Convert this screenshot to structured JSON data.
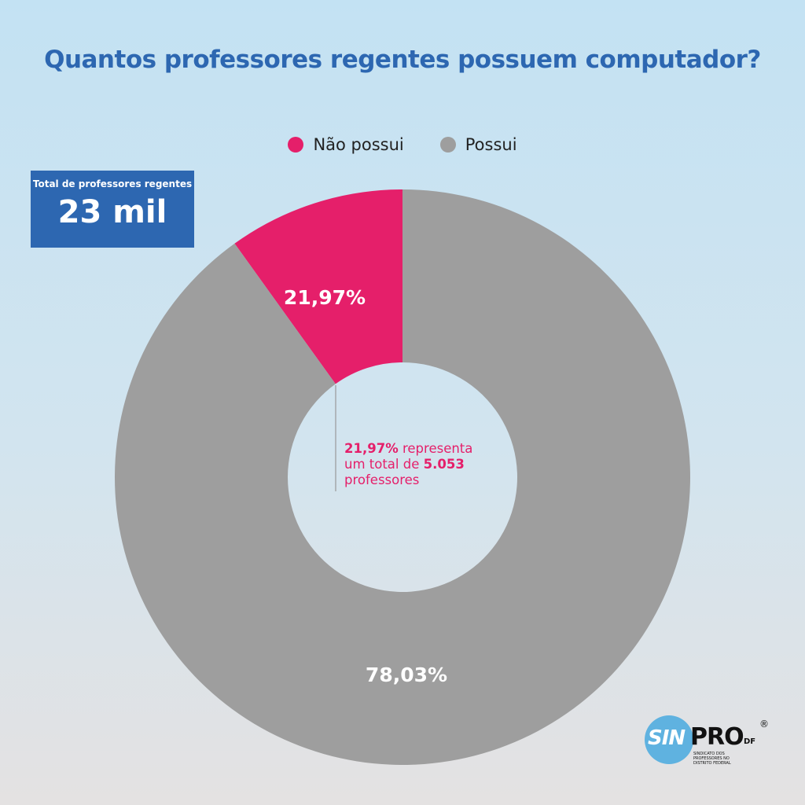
{
  "title": "Quantos professores regentes possuem computador?",
  "total_box": {
    "label": "Total de professores regentes",
    "value": "23 mil"
  },
  "note": {
    "percent": "21,97%",
    "text1": " representa",
    "text2": "um total de ",
    "count": "5.053",
    "text3": "professores"
  },
  "logo": {
    "sin": "SIN",
    "pro": "PRO",
    "df": "DF",
    "reg": "®",
    "tagline": "SINDICATO DOS PROFESSORES NO DISTRITO FEDERAL"
  },
  "chart_data": {
    "type": "pie",
    "variant": "donut",
    "title": "Quantos professores regentes possuem computador?",
    "legend_placement": "top",
    "series": [
      {
        "name": "Não possui",
        "value": 21.97,
        "label": "21,97%",
        "color": "#e51f6a"
      },
      {
        "name": "Possui",
        "value": 78.03,
        "label": "78,03%",
        "color": "#9e9e9e"
      }
    ]
  }
}
